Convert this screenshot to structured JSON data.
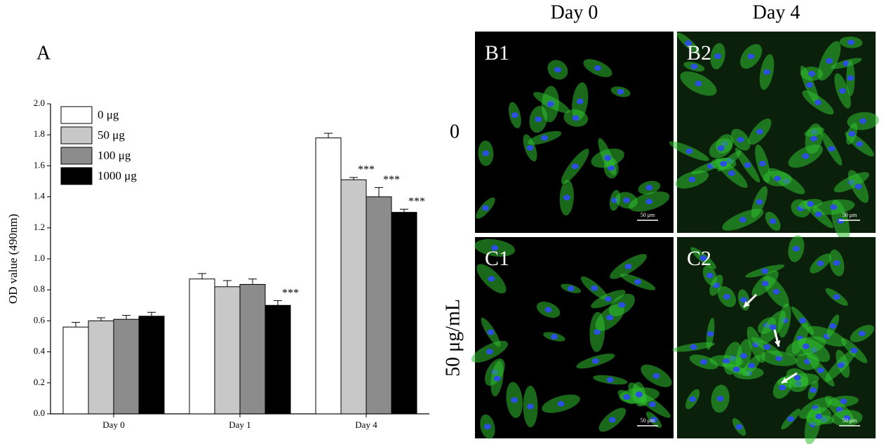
{
  "chart_data": {
    "type": "bar",
    "panel_label": "A",
    "y_label": "OD value (490nm)",
    "categories": [
      "Day 0",
      "Day 1",
      "Day 4"
    ],
    "series": [
      {
        "name": "0 μg",
        "color": "#ffffff",
        "values": [
          0.56,
          0.87,
          1.78
        ],
        "errors": [
          0.03,
          0.035,
          0.03
        ],
        "significance": [
          null,
          null,
          null
        ]
      },
      {
        "name": "50 μg",
        "color": "#c8c8c8",
        "values": [
          0.6,
          0.82,
          1.51
        ],
        "errors": [
          0.02,
          0.04,
          0.015
        ],
        "significance": [
          null,
          null,
          "***"
        ]
      },
      {
        "name": "100 μg",
        "color": "#8c8c8c",
        "values": [
          0.61,
          0.835,
          1.4
        ],
        "errors": [
          0.025,
          0.035,
          0.06
        ],
        "significance": [
          null,
          null,
          "***"
        ]
      },
      {
        "name": "1000 μg",
        "color": "#000000",
        "values": [
          0.63,
          0.7,
          1.3
        ],
        "errors": [
          0.025,
          0.03,
          0.02
        ],
        "significance": [
          null,
          "***",
          "***"
        ]
      }
    ],
    "ylim": [
      0,
      2.0
    ],
    "yticks": [
      {
        "value": 0,
        "label": "0.0"
      },
      {
        "value": 0.2,
        "label": "0.2"
      },
      {
        "value": 0.4,
        "label": "0.4"
      },
      {
        "value": 0.6,
        "label": "0.6"
      },
      {
        "value": 0.8,
        "label": "0.8"
      },
      {
        "value": 1.0,
        "label": "1.0"
      },
      {
        "value": 1.2,
        "label": "1.2"
      },
      {
        "value": 1.4,
        "label": "1.4"
      },
      {
        "value": 1.6,
        "label": "1.6"
      },
      {
        "value": 1.8,
        "label": "1.8"
      },
      {
        "value": 2.0,
        "label": "2.0"
      }
    ],
    "grid": false
  },
  "panels": {
    "column_headers": [
      "Day 0",
      "Day 4"
    ],
    "row_labels": [
      "0",
      "50 μg/mL"
    ],
    "images": [
      {
        "label": "B1",
        "scale_bar": "50 μm"
      },
      {
        "label": "B2",
        "scale_bar": "50 μm"
      },
      {
        "label": "C1",
        "scale_bar": "50 μm"
      },
      {
        "label": "C2",
        "scale_bar": "50 μm"
      }
    ]
  }
}
